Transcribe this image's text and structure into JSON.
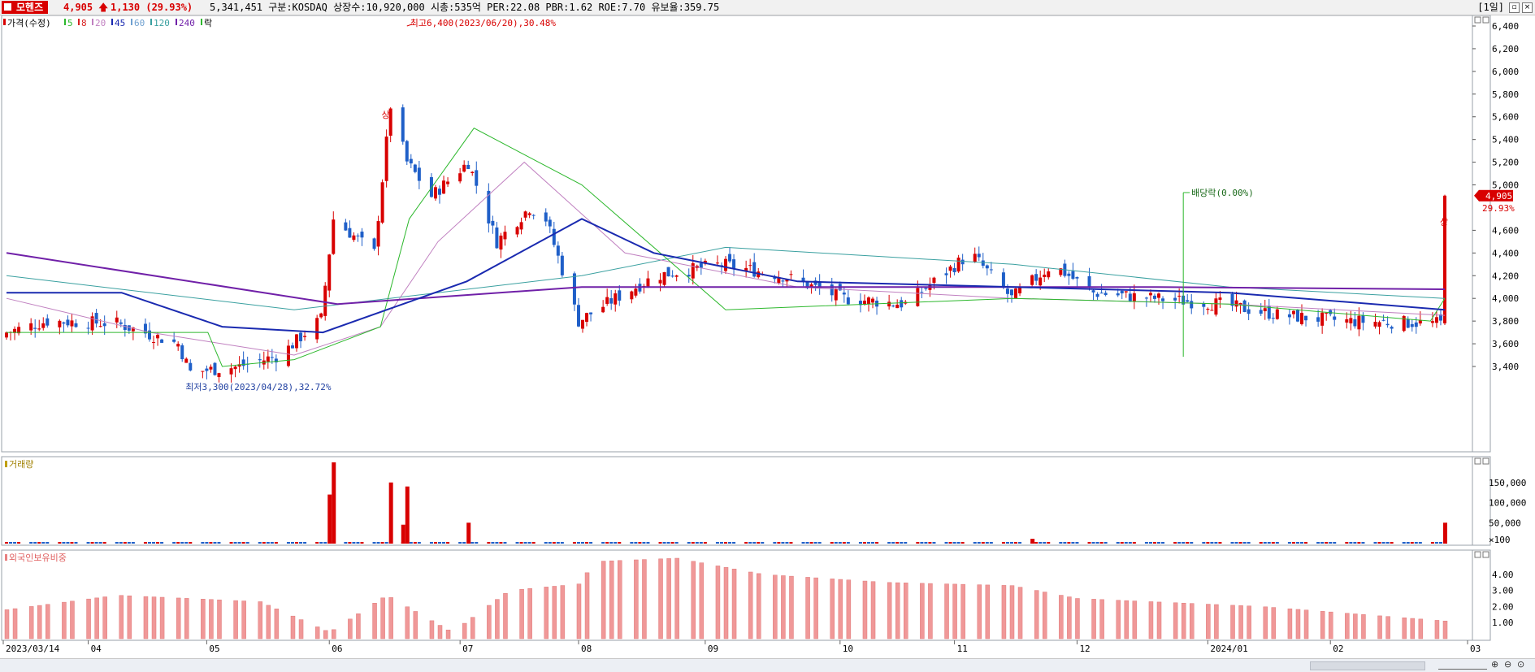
{
  "header": {
    "stock_name": "모헨즈",
    "price": "4,905",
    "change": "1,130",
    "change_pct": "(29.93%)",
    "info": "5,341,451  구분:KOSDAQ 상장수:10,920,000 시총:535억 PER:22.08 PBR:1.62 ROE:7.70 유보율:359.75",
    "period": "[1일]",
    "up_color": "#d80000",
    "down_color": "#1f5fc8"
  },
  "legend": {
    "label": "가격(수정)",
    "ma": [
      "5",
      "8",
      "20",
      "45",
      "60",
      "120",
      "240"
    ],
    "ma_colors": [
      "#2db82d",
      "#d82020",
      "#c080c0",
      "#1a2ab0",
      "#6fa0d0",
      "#3aa0a0",
      "#7020a8"
    ],
    "ex_label": "락"
  },
  "price_axis": {
    "ticks": [
      "6,400",
      "6,200",
      "6,000",
      "5,800",
      "5,600",
      "5,400",
      "5,200",
      "5,000",
      "4,600",
      "4,400",
      "4,200",
      "4,000",
      "3,800",
      "3,600",
      "3,400"
    ],
    "current_label": "4,905",
    "current_pct": "29.93%"
  },
  "annotations": {
    "high": "최고6,400(2023/06/20),30.48%",
    "low": "최저3,300(2023/04/28),32.72%",
    "dividend": "배당락(0.00%)",
    "limit_up": "상"
  },
  "volume_panel": {
    "title": "거래량",
    "ticks": [
      "150,000",
      "100,000",
      "50,000",
      "×100"
    ]
  },
  "foreign_panel": {
    "title": "외국인보유비중",
    "ticks": [
      "4.00",
      "3.00",
      "2.00",
      "1.00"
    ]
  },
  "x_axis": {
    "labels": [
      "2023/03/14",
      "04",
      "05",
      "06",
      "07",
      "08",
      "09",
      "10",
      "11",
      "12",
      "2024/01",
      "02",
      "03"
    ]
  },
  "chart_data": {
    "type": "candlestick",
    "date_range": [
      "2023/03/14",
      "2024/02/29"
    ],
    "price_range": [
      3300,
      6500
    ],
    "high": {
      "value": 6400,
      "date": "2023/06/20"
    },
    "low": {
      "value": 3300,
      "date": "2023/04/28"
    },
    "last": {
      "close": 4905,
      "change": 1130,
      "change_pct": 29.93
    },
    "close_anchors": [
      [
        "2023/03/14",
        3700
      ],
      [
        "2023/03/24",
        3800
      ],
      [
        "2023/04/10",
        3780
      ],
      [
        "2023/04/25",
        3600
      ],
      [
        "2023/04/28",
        3350
      ],
      [
        "2023/05/10",
        3400
      ],
      [
        "2023/05/20",
        3500
      ],
      [
        "2023/05/30",
        3820
      ],
      [
        "2023/06/02",
        4700
      ],
      [
        "2023/06/12",
        4400
      ],
      [
        "2023/06/16",
        5700
      ],
      [
        "2023/06/20",
        5200
      ],
      [
        "2023/06/26",
        4900
      ],
      [
        "2023/07/05",
        5200
      ],
      [
        "2023/07/12",
        4500
      ],
      [
        "2023/07/20",
        4800
      ],
      [
        "2023/07/24",
        4700
      ],
      [
        "2023/08/01",
        3800
      ],
      [
        "2023/08/10",
        4000
      ],
      [
        "2023/08/20",
        4200
      ],
      [
        "2023/09/05",
        4300
      ],
      [
        "2023/09/20",
        4200
      ],
      [
        "2023/10/05",
        4000
      ],
      [
        "2023/10/20",
        3950
      ],
      [
        "2023/11/05",
        4400
      ],
      [
        "2023/11/15",
        4000
      ],
      [
        "2023/11/25",
        4300
      ],
      [
        "2023/12/05",
        4050
      ],
      [
        "2023/12/20",
        4000
      ],
      [
        "2024/01/05",
        3950
      ],
      [
        "2024/01/20",
        3850
      ],
      [
        "2024/02/05",
        3800
      ],
      [
        "2024/02/28",
        3780
      ],
      [
        "2024/02/29",
        4905
      ]
    ],
    "ma5": [
      [
        0,
        3700
      ],
      [
        0.14,
        3700
      ],
      [
        0.15,
        3400
      ],
      [
        0.2,
        3460
      ],
      [
        0.26,
        3750
      ],
      [
        0.28,
        4700
      ],
      [
        0.325,
        5500
      ],
      [
        0.4,
        5000
      ],
      [
        0.5,
        3900
      ],
      [
        0.7,
        4000
      ],
      [
        0.85,
        3950
      ],
      [
        0.99,
        3800
      ],
      [
        1,
        4000
      ]
    ],
    "ma20": [
      [
        0,
        4000
      ],
      [
        0.1,
        3700
      ],
      [
        0.2,
        3500
      ],
      [
        0.26,
        3750
      ],
      [
        0.3,
        4500
      ],
      [
        0.36,
        5200
      ],
      [
        0.43,
        4400
      ],
      [
        0.55,
        4100
      ],
      [
        0.7,
        4000
      ],
      [
        0.85,
        3950
      ],
      [
        1,
        3850
      ]
    ],
    "ma45": [
      [
        0,
        4050
      ],
      [
        0.08,
        4050
      ],
      [
        0.15,
        3750
      ],
      [
        0.22,
        3700
      ],
      [
        0.32,
        4150
      ],
      [
        0.4,
        4700
      ],
      [
        0.45,
        4400
      ],
      [
        0.55,
        4150
      ],
      [
        0.7,
        4100
      ],
      [
        0.85,
        4050
      ],
      [
        1,
        3900
      ]
    ],
    "ma120": [
      [
        0,
        4200
      ],
      [
        0.2,
        3900
      ],
      [
        0.4,
        4200
      ],
      [
        0.5,
        4450
      ],
      [
        0.7,
        4300
      ],
      [
        0.85,
        4100
      ],
      [
        1,
        4000
      ]
    ],
    "ma240": [
      [
        0,
        4400
      ],
      [
        0.23,
        3950
      ],
      [
        0.4,
        4100
      ],
      [
        0.6,
        4100
      ],
      [
        0.8,
        4100
      ],
      [
        1,
        4080
      ]
    ],
    "volume": {
      "max": 200000,
      "spikes": [
        [
          "2023/06/01",
          120000
        ],
        [
          "2023/06/02",
          200000
        ],
        [
          "2023/06/16",
          150000
        ],
        [
          "2023/06/19",
          45000
        ],
        [
          "2023/06/20",
          140000
        ],
        [
          "2023/07/05",
          50000
        ],
        [
          "2023/11/20",
          10000
        ],
        [
          "2024/02/29",
          50000
        ]
      ]
    },
    "foreign_ownership": {
      "range": [
        0,
        5
      ],
      "series": [
        [
          "2023/03/14",
          1.8
        ],
        [
          "2023/04/10",
          2.7
        ],
        [
          "2023/05/15",
          2.3
        ],
        [
          "2023/06/01",
          0.4
        ],
        [
          "2023/06/15",
          2.7
        ],
        [
          "2023/07/01",
          0.4
        ],
        [
          "2023/07/15",
          3.0
        ],
        [
          "2023/08/01",
          3.4
        ],
        [
          "2023/08/05",
          4.8
        ],
        [
          "2023/08/25",
          5.0
        ],
        [
          "2023/09/15",
          4.0
        ],
        [
          "2023/10/15",
          3.5
        ],
        [
          "2023/11/15",
          3.3
        ],
        [
          "2023/12/01",
          2.5
        ],
        [
          "2024/01/15",
          2.0
        ],
        [
          "2024/02/29",
          1.1
        ]
      ]
    }
  }
}
